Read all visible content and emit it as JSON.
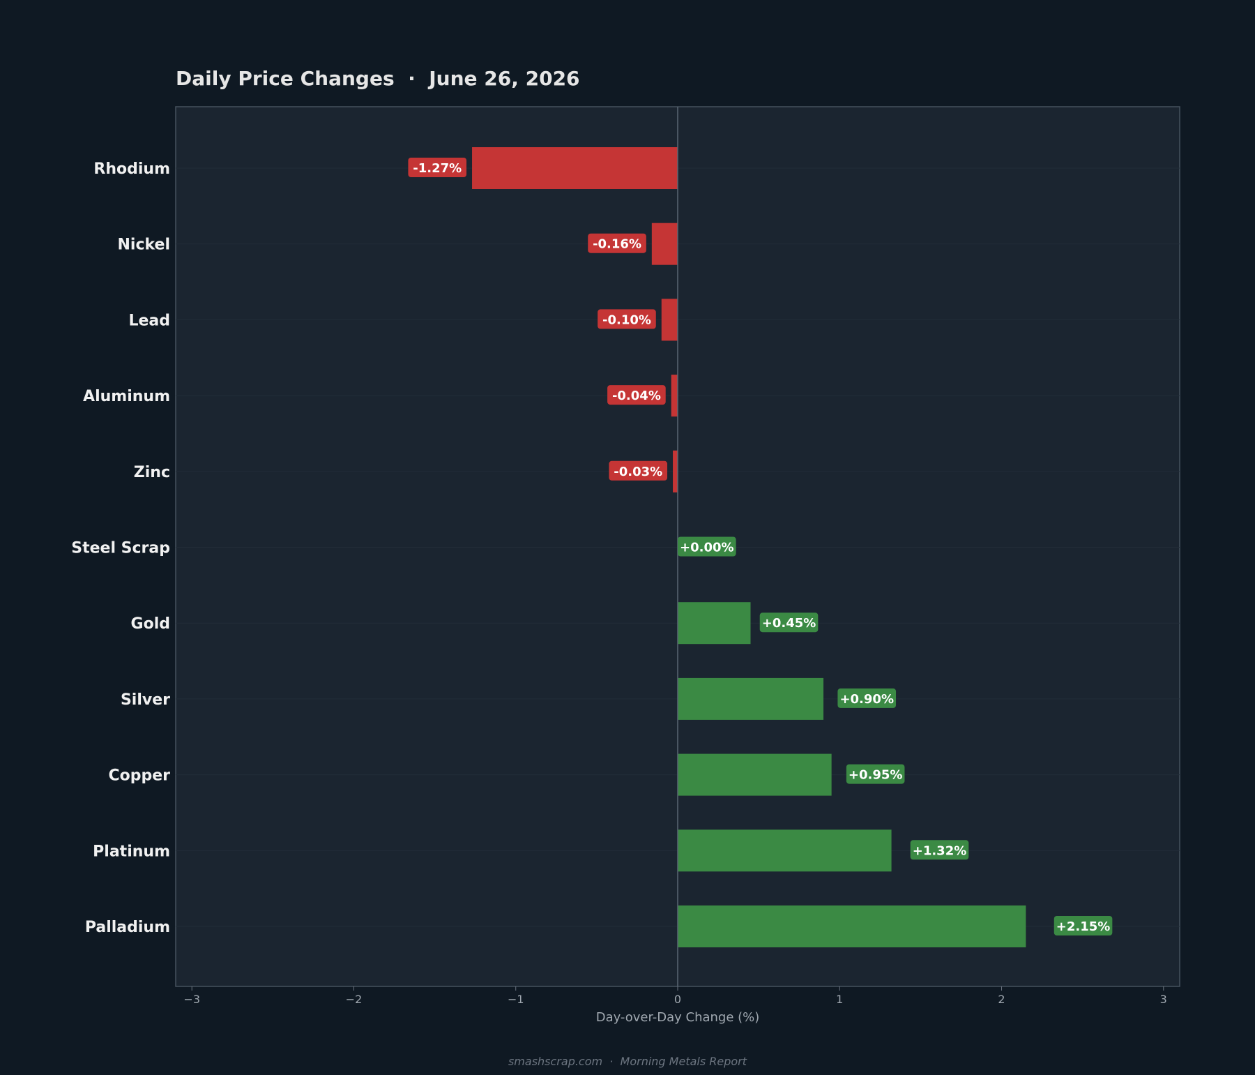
{
  "chart_data": {
    "type": "bar",
    "orientation": "horizontal",
    "title": "Daily Price Changes  ·  June 26, 2026",
    "xlabel": "Day-over-Day Change (%)",
    "ylabel": "",
    "xlim": [
      -3.1,
      3.1
    ],
    "x_ticks": [
      -3,
      -2,
      -1,
      0,
      1,
      2,
      3
    ],
    "x_tick_labels": [
      "−3",
      "−2",
      "−1",
      "0",
      "1",
      "2",
      "3"
    ],
    "categories": [
      "Rhodium",
      "Nickel",
      "Lead",
      "Aluminum",
      "Zinc",
      "Steel Scrap",
      "Gold",
      "Silver",
      "Copper",
      "Platinum",
      "Palladium"
    ],
    "values": [
      -1.27,
      -0.16,
      -0.1,
      -0.04,
      -0.03,
      0.0,
      0.45,
      0.9,
      0.95,
      1.32,
      2.15
    ],
    "value_labels": [
      "-1.27%",
      "-0.16%",
      "-0.10%",
      "-0.04%",
      "-0.03%",
      "+0.00%",
      "+0.45%",
      "+0.90%",
      "+0.95%",
      "+1.32%",
      "+2.15%"
    ],
    "grid": true,
    "legend": null
  },
  "footer": "smashscrap.com  ·  Morning Metals Report",
  "colors": {
    "page_bg": "#0f1923",
    "plot_bg": "#1b2530",
    "frame": "#46525e",
    "negative": "#c53535",
    "positive": "#3b8a44",
    "category_text": "#f1f1f1",
    "title_text": "#e6e6e6",
    "tick_text": "#a0a8b0",
    "footer_text": "#6c7580",
    "zero_line": "#5a6672"
  }
}
